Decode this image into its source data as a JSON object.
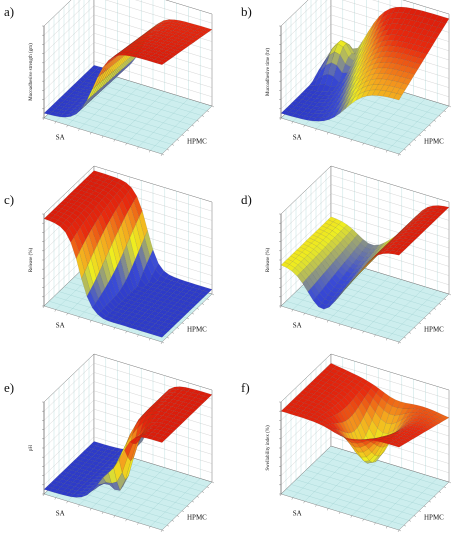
{
  "figure": {
    "panels": [
      {
        "id": "a",
        "letter": "a)",
        "zlabel": "Mucoadhesive strength (gm)",
        "xlabel": "SA",
        "ylabel": "HPMC"
      },
      {
        "id": "b",
        "letter": "b)",
        "zlabel": "Mucoadhesive time (hr)",
        "xlabel": "SA",
        "ylabel": "HPMC"
      },
      {
        "id": "c",
        "letter": "c)",
        "zlabel": "Release (%)",
        "xlabel": "SA",
        "ylabel": "HPMC"
      },
      {
        "id": "d",
        "letter": "d)",
        "zlabel": "Release (%)",
        "xlabel": "SA",
        "ylabel": "HPMC"
      },
      {
        "id": "e",
        "letter": "e)",
        "zlabel": "pH",
        "xlabel": "SA",
        "ylabel": "HPMC"
      },
      {
        "id": "f",
        "letter": "f)",
        "zlabel": "Swellability index (%)",
        "xlabel": "SA",
        "ylabel": "HPMC"
      }
    ]
  },
  "chart_data": [
    {
      "type": "surface",
      "panel": "a",
      "zlabel": "Mucoadhesive strength (gm)",
      "xlabel": "SA",
      "ylabel": "HPMC",
      "colormap": [
        "#2a35c4",
        "#f2f020",
        "#e8200c"
      ],
      "shape": "sigmoid step along SA: low plateau at low SA rising to high plateau at high SA"
    },
    {
      "type": "surface",
      "panel": "b",
      "zlabel": "Mucoadhesive time (hr)",
      "xlabel": "SA",
      "ylabel": "HPMC",
      "colormap": [
        "#2a35c4",
        "#f2f020",
        "#e8200c"
      ],
      "shape": "rising ridge toward high SA with a low hump at low SA / low HPMC"
    },
    {
      "type": "surface",
      "panel": "c",
      "zlabel": "Release (%)",
      "xlabel": "SA",
      "ylabel": "HPMC",
      "colormap": [
        "#2a35c4",
        "#f2f020",
        "#e8200c"
      ],
      "shape": "high plateau at low SA dropping sharply to low floor with a notch"
    },
    {
      "type": "surface",
      "panel": "d",
      "zlabel": "Release (%)",
      "xlabel": "SA",
      "ylabel": "HPMC",
      "colormap": [
        "#2a35c4",
        "#f2f020",
        "#e8200c"
      ],
      "shape": "saddle: mid-level at low SA, high plateau at high SA, dip between"
    },
    {
      "type": "surface",
      "panel": "e",
      "zlabel": "pH",
      "xlabel": "SA",
      "ylabel": "HPMC",
      "colormap": [
        "#2a35c4",
        "#f2f020",
        "#e8200c"
      ],
      "shape": "steep rise in middle of SA from low floor to high plateau, jagged edge"
    },
    {
      "type": "surface",
      "panel": "f",
      "zlabel": "Swellability index (%)",
      "xlabel": "SA",
      "ylabel": "HPMC",
      "colormap": [
        "#2a35c4",
        "#f2f020",
        "#e8200c"
      ],
      "shape": "high near-flat sheet with a central trough"
    }
  ]
}
